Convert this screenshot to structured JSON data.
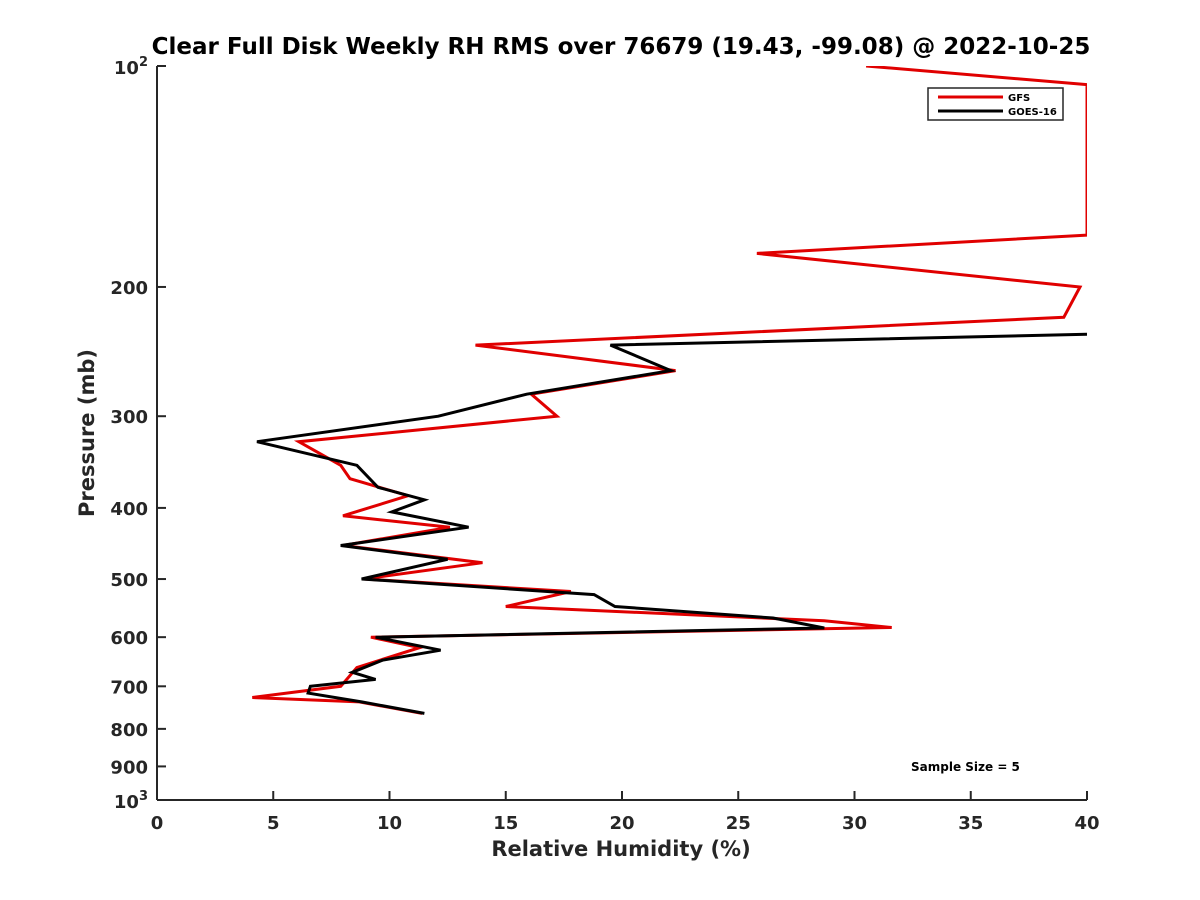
{
  "chart_data": {
    "type": "line",
    "title": "Clear Full Disk Weekly RH RMS over 76679 (19.43, -99.08) @ 2022-10-25",
    "xlabel": "Relative Humidity (%)",
    "ylabel": "Pressure (mb)",
    "xlim": [
      0,
      40
    ],
    "ylim": [
      100,
      1000
    ],
    "yscale": "log",
    "y_reversed": true,
    "grid": false,
    "legend_position": "top-right",
    "x_ticks": [
      "0",
      "5",
      "10",
      "15",
      "20",
      "25",
      "30",
      "35",
      "40"
    ],
    "y_ticks": [
      {
        "value": 100,
        "base": "10",
        "exp": "2"
      },
      {
        "value": 200,
        "label": "200"
      },
      {
        "value": 300,
        "label": "300"
      },
      {
        "value": 400,
        "label": "400"
      },
      {
        "value": 500,
        "label": "500"
      },
      {
        "value": 600,
        "label": "600"
      },
      {
        "value": 700,
        "label": "700"
      },
      {
        "value": 800,
        "label": "800"
      },
      {
        "value": 900,
        "label": "900"
      },
      {
        "value": 1000,
        "base": "10",
        "exp": "3"
      }
    ],
    "annotation": "Sample Size = 5",
    "series": [
      {
        "name": "GFS",
        "color": "#e00000",
        "points": [
          [
            30.5,
            100
          ],
          [
            40.0,
            106
          ],
          [
            40.0,
            170
          ],
          [
            25.8,
            180
          ],
          [
            39.7,
            200
          ],
          [
            39.0,
            220
          ],
          [
            13.7,
            240
          ],
          [
            22.3,
            260
          ],
          [
            16.1,
            280
          ],
          [
            17.2,
            300
          ],
          [
            6.1,
            325
          ],
          [
            7.9,
            350
          ],
          [
            8.3,
            365
          ],
          [
            10.8,
            385
          ],
          [
            8.0,
            410
          ],
          [
            12.6,
            425
          ],
          [
            8.0,
            450
          ],
          [
            14.0,
            475
          ],
          [
            8.9,
            500
          ],
          [
            17.8,
            520
          ],
          [
            15.0,
            545
          ],
          [
            28.7,
            570
          ],
          [
            31.6,
            582
          ],
          [
            9.2,
            600
          ],
          [
            11.3,
            620
          ],
          [
            8.6,
            660
          ],
          [
            7.9,
            700
          ],
          [
            4.1,
            725
          ],
          [
            8.7,
            735
          ],
          [
            11.4,
            762
          ]
        ]
      },
      {
        "name": "GOES-16",
        "color": "#000000",
        "points": [
          [
            40.0,
            232
          ],
          [
            19.5,
            240
          ],
          [
            22.1,
            260
          ],
          [
            15.9,
            280
          ],
          [
            12.1,
            300
          ],
          [
            4.3,
            325
          ],
          [
            8.6,
            350
          ],
          [
            9.5,
            375
          ],
          [
            11.5,
            390
          ],
          [
            10.1,
            405
          ],
          [
            13.4,
            425
          ],
          [
            7.9,
            450
          ],
          [
            12.5,
            470
          ],
          [
            8.8,
            500
          ],
          [
            18.8,
            525
          ],
          [
            19.7,
            545
          ],
          [
            26.5,
            565
          ],
          [
            28.7,
            583
          ],
          [
            9.4,
            600
          ],
          [
            12.2,
            625
          ],
          [
            9.7,
            645
          ],
          [
            8.4,
            670
          ],
          [
            9.4,
            685
          ],
          [
            6.6,
            700
          ],
          [
            6.5,
            715
          ],
          [
            8.8,
            735
          ],
          [
            11.5,
            762
          ]
        ]
      }
    ]
  }
}
